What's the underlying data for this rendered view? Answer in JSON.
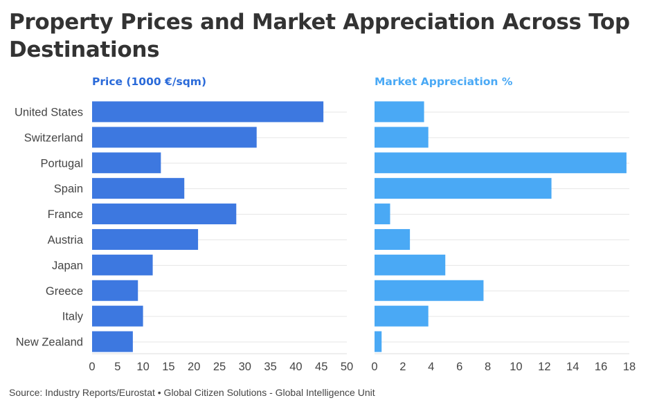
{
  "title": "Property Prices and Market Appreciation Across Top Destinations",
  "source": "Source: Industry Reports/Eurostat • Global Citizen Solutions - Global Intelligence Unit",
  "colors": {
    "price": "#3d78e0",
    "appreciation": "#4aa9f5"
  },
  "chart_data": [
    {
      "type": "bar",
      "orientation": "horizontal",
      "title": "Price (1000 €/sqm)",
      "categories": [
        "United States",
        "Switzerland",
        "Portugal",
        "Spain",
        "France",
        "Austria",
        "Japan",
        "Greece",
        "Italy",
        "New Zealand"
      ],
      "values": [
        45.4,
        32.3,
        13.5,
        18.1,
        28.3,
        20.8,
        11.9,
        9.0,
        10.0,
        8.0
      ],
      "xlim": [
        0,
        50
      ],
      "ticks": [
        0,
        5,
        10,
        15,
        20,
        25,
        30,
        35,
        40,
        45,
        50
      ],
      "grid": true
    },
    {
      "type": "bar",
      "orientation": "horizontal",
      "title": "Market Appreciation %",
      "categories": [
        "United States",
        "Switzerland",
        "Portugal",
        "Spain",
        "France",
        "Austria",
        "Japan",
        "Greece",
        "Italy",
        "New Zealand"
      ],
      "values": [
        3.5,
        3.8,
        17.8,
        12.5,
        1.1,
        2.5,
        5.0,
        7.7,
        3.8,
        0.5
      ],
      "xlim": [
        0,
        18
      ],
      "ticks": [
        0,
        2,
        4,
        6,
        8,
        10,
        12,
        14,
        16,
        18
      ],
      "grid": true
    }
  ]
}
